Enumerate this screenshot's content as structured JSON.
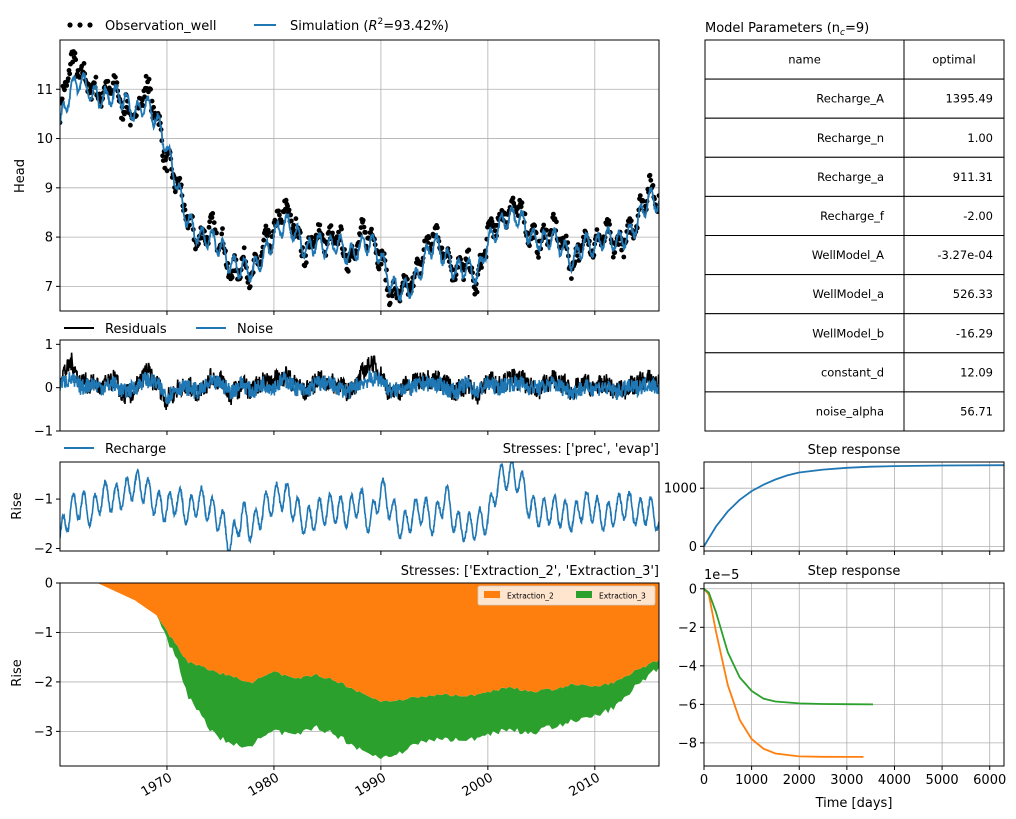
{
  "colors": {
    "blue": "#1f77b4",
    "orange": "#ff7f0e",
    "green": "#2ca02c",
    "black": "#000000",
    "grid": "#b0b0b0"
  },
  "chart_data": [
    {
      "id": "head",
      "type": "line",
      "ylabel": "Head",
      "xlim": [
        1960,
        2016
      ],
      "ylim": [
        6.5,
        12
      ],
      "yticks": [
        7,
        8,
        9,
        10,
        11
      ],
      "xticks": [
        1970,
        1980,
        1990,
        2000,
        2010
      ],
      "grid": true,
      "legend": {
        "placement": "top-left, above axes",
        "entries": [
          {
            "label": "Observation_well",
            "marker": "dots",
            "color": "#000000"
          },
          {
            "label": "Simulation (R²=93.42%)",
            "marker": "line",
            "color": "#1f77b4"
          }
        ]
      },
      "series": [
        {
          "name": "Observation_well",
          "style": "dots",
          "color": "#000000",
          "x": [
            1960,
            1961,
            1962,
            1963,
            1964,
            1965,
            1966,
            1967,
            1968,
            1969,
            1970,
            1971,
            1972,
            1973,
            1974,
            1975,
            1976,
            1977,
            1978,
            1979,
            1980,
            1981,
            1982,
            1983,
            1984,
            1985,
            1986,
            1987,
            1988,
            1989,
            1990,
            1991,
            1992,
            1993,
            1994,
            1995,
            1996,
            1997,
            1998,
            1999,
            2000,
            2001,
            2002,
            2003,
            2004,
            2005,
            2006,
            2007,
            2008,
            2009,
            2010,
            2011,
            2012,
            2013,
            2014,
            2015,
            2016
          ],
          "y": [
            10.5,
            11.6,
            11.3,
            11.0,
            10.9,
            11.1,
            10.6,
            10.4,
            11.1,
            10.5,
            9.5,
            9.1,
            8.3,
            7.9,
            8.2,
            8.0,
            7.2,
            7.5,
            7.2,
            7.8,
            8.1,
            8.6,
            8.2,
            7.6,
            8.1,
            7.9,
            8.0,
            7.5,
            8.0,
            8.1,
            7.6,
            6.8,
            6.9,
            7.1,
            7.7,
            8.1,
            7.7,
            7.3,
            7.5,
            7.0,
            8.1,
            8.3,
            8.6,
            8.6,
            8.0,
            7.9,
            8.2,
            7.9,
            7.4,
            8.0,
            7.8,
            8.1,
            7.8,
            8.0,
            8.4,
            9.0,
            8.8
          ]
        },
        {
          "name": "Simulation",
          "style": "line",
          "color": "#1f77b4",
          "x": [
            1960,
            1961,
            1962,
            1963,
            1964,
            1965,
            1966,
            1967,
            1968,
            1969,
            1970,
            1971,
            1972,
            1973,
            1974,
            1975,
            1976,
            1977,
            1978,
            1979,
            1980,
            1981,
            1982,
            1983,
            1984,
            1985,
            1986,
            1987,
            1988,
            1989,
            1990,
            1991,
            1992,
            1993,
            1994,
            1995,
            1996,
            1997,
            1998,
            1999,
            2000,
            2001,
            2002,
            2003,
            2004,
            2005,
            2006,
            2007,
            2008,
            2009,
            2010,
            2011,
            2012,
            2013,
            2014,
            2015,
            2016
          ],
          "y": [
            10.3,
            11.0,
            11.2,
            10.9,
            10.8,
            10.9,
            10.8,
            10.5,
            10.7,
            10.4,
            9.8,
            9.0,
            8.3,
            8.0,
            8.0,
            7.8,
            7.4,
            7.4,
            7.3,
            7.6,
            8.0,
            8.3,
            8.1,
            7.7,
            7.9,
            7.8,
            7.9,
            7.6,
            7.8,
            7.9,
            7.6,
            7.0,
            6.9,
            7.0,
            7.5,
            7.9,
            7.6,
            7.3,
            7.4,
            7.2,
            7.9,
            8.2,
            8.4,
            8.4,
            8.0,
            7.9,
            8.0,
            7.8,
            7.5,
            7.9,
            7.8,
            8.0,
            7.9,
            8.0,
            8.3,
            8.8,
            8.7
          ]
        }
      ]
    },
    {
      "id": "residuals",
      "type": "line",
      "xlim": [
        1960,
        2016
      ],
      "ylim": [
        -1,
        1.1
      ],
      "yticks": [
        -1,
        0,
        1
      ],
      "xticks": [
        1970,
        1980,
        1990,
        2000,
        2010
      ],
      "grid": false,
      "legend": {
        "placement": "top-left, above axes",
        "entries": [
          {
            "label": "Residuals",
            "color": "#000000"
          },
          {
            "label": "Noise",
            "color": "#1f77b4"
          }
        ]
      },
      "series": [
        {
          "name": "Residuals",
          "color": "#000000",
          "x": [
            1960,
            1961,
            1962,
            1963,
            1964,
            1965,
            1966,
            1967,
            1968,
            1969,
            1970,
            1971,
            1972,
            1973,
            1974,
            1975,
            1976,
            1977,
            1978,
            1979,
            1980,
            1981,
            1982,
            1983,
            1984,
            1985,
            1986,
            1987,
            1988,
            1989,
            1990,
            1991,
            1992,
            1993,
            1994,
            1995,
            1996,
            1997,
            1998,
            1999,
            2000,
            2001,
            2002,
            2003,
            2004,
            2005,
            2006,
            2007,
            2008,
            2009,
            2010,
            2011,
            2012,
            2013,
            2014,
            2015,
            2016
          ],
          "y": [
            0.2,
            0.6,
            0.1,
            0.1,
            0.0,
            0.2,
            -0.2,
            -0.1,
            0.4,
            0.1,
            -0.3,
            0.0,
            0.0,
            -0.1,
            0.2,
            0.2,
            -0.2,
            0.1,
            -0.1,
            0.2,
            0.1,
            0.3,
            0.1,
            -0.1,
            0.2,
            0.1,
            0.1,
            -0.1,
            0.2,
            0.6,
            0.3,
            -0.2,
            0.0,
            0.1,
            0.2,
            0.2,
            0.1,
            -0.1,
            0.1,
            -0.2,
            0.2,
            0.1,
            0.2,
            0.2,
            0.0,
            0.0,
            0.2,
            0.1,
            -0.1,
            0.1,
            0.0,
            0.1,
            -0.1,
            0.0,
            0.1,
            0.2,
            0.1
          ]
        },
        {
          "name": "Noise",
          "color": "#1f77b4",
          "x": [
            1960,
            1961,
            1962,
            1963,
            1964,
            1965,
            1966,
            1967,
            1968,
            1969,
            1970,
            1971,
            1972,
            1973,
            1974,
            1975,
            1976,
            1977,
            1978,
            1979,
            1980,
            1981,
            1982,
            1983,
            1984,
            1985,
            1986,
            1987,
            1988,
            1989,
            1990,
            1991,
            1992,
            1993,
            1994,
            1995,
            1996,
            1997,
            1998,
            1999,
            2000,
            2001,
            2002,
            2003,
            2004,
            2005,
            2006,
            2007,
            2008,
            2009,
            2010,
            2011,
            2012,
            2013,
            2014,
            2015,
            2016
          ],
          "y": [
            0.1,
            0.2,
            0.0,
            0.1,
            0.0,
            0.1,
            -0.1,
            0.0,
            0.2,
            0.1,
            -0.2,
            0.0,
            0.0,
            -0.1,
            0.1,
            0.1,
            -0.1,
            0.1,
            -0.1,
            0.1,
            0.0,
            0.2,
            0.0,
            -0.1,
            0.1,
            0.1,
            0.0,
            -0.1,
            0.1,
            0.2,
            0.2,
            -0.1,
            0.0,
            0.0,
            0.1,
            0.1,
            0.0,
            -0.1,
            0.1,
            -0.1,
            0.1,
            0.0,
            0.1,
            0.1,
            0.0,
            0.0,
            0.1,
            0.0,
            -0.1,
            0.0,
            0.0,
            0.0,
            -0.1,
            0.0,
            0.0,
            0.1,
            0.0
          ]
        }
      ]
    },
    {
      "id": "recharge",
      "type": "line",
      "title": "Stresses: ['prec', 'evap']",
      "ylabel": "Rise",
      "xlim": [
        1960,
        2016
      ],
      "ylim": [
        -2.05,
        -0.25
      ],
      "yticks": [
        -2,
        -1
      ],
      "xticks": [
        1970,
        1980,
        1990,
        2000,
        2010
      ],
      "grid": false,
      "legend": {
        "placement": "top-left, above axes",
        "entries": [
          {
            "label": "Recharge",
            "color": "#1f77b4"
          }
        ]
      },
      "series": [
        {
          "name": "Recharge",
          "color": "#1f77b4",
          "x": [
            1960,
            1961,
            1962,
            1963,
            1964,
            1965,
            1966,
            1967,
            1968,
            1969,
            1970,
            1971,
            1972,
            1973,
            1974,
            1975,
            1976,
            1977,
            1978,
            1979,
            1980,
            1981,
            1982,
            1983,
            1984,
            1985,
            1986,
            1987,
            1988,
            1989,
            1990,
            1991,
            1992,
            1993,
            1994,
            1995,
            1996,
            1997,
            1998,
            1999,
            2000,
            2001,
            2002,
            2003,
            2004,
            2005,
            2006,
            2007,
            2008,
            2009,
            2010,
            2011,
            2012,
            2013,
            2014,
            2015,
            2016
          ],
          "y": [
            -1.8,
            -1.2,
            -1.1,
            -1.3,
            -0.9,
            -1.0,
            -0.9,
            -0.7,
            -0.8,
            -1.1,
            -1.2,
            -1.0,
            -1.3,
            -1.0,
            -1.2,
            -1.4,
            -1.9,
            -1.3,
            -1.6,
            -1.2,
            -1.0,
            -0.9,
            -1.2,
            -1.5,
            -1.3,
            -1.2,
            -1.2,
            -1.3,
            -1.0,
            -1.5,
            -0.8,
            -1.2,
            -1.6,
            -1.3,
            -1.2,
            -1.5,
            -0.9,
            -1.5,
            -1.6,
            -1.5,
            -1.4,
            -0.6,
            -0.5,
            -0.6,
            -1.2,
            -1.3,
            -1.2,
            -1.3,
            -1.4,
            -1.1,
            -1.2,
            -1.4,
            -1.2,
            -1.1,
            -1.3,
            -1.2,
            -1.4
          ]
        }
      ]
    },
    {
      "id": "extraction",
      "type": "area",
      "title": "Stresses: ['Extraction_2', 'Extraction_3']",
      "ylabel": "Rise",
      "xlim": [
        1960,
        2016
      ],
      "ylim": [
        -3.7,
        0
      ],
      "yticks": [
        -3,
        -2,
        -1,
        0
      ],
      "xticks": [
        1970,
        1980,
        1990,
        2000,
        2010
      ],
      "xticklabels": [
        "1970",
        "1980",
        "1990",
        "2000",
        "2010"
      ],
      "grid": true,
      "legend": {
        "placement": "top-right",
        "entries": [
          {
            "label": "Extraction_2",
            "color": "#ff7f0e"
          },
          {
            "label": "Extraction_3",
            "color": "#2ca02c"
          }
        ]
      },
      "x": [
        1963.5,
        1965,
        1967,
        1969,
        1971,
        1972,
        1974,
        1976,
        1978,
        1980,
        1982,
        1984,
        1986,
        1988,
        1990,
        1992,
        1994,
        1996,
        1998,
        2000,
        2002,
        2004,
        2006,
        2008,
        2010,
        2012,
        2014,
        2016
      ],
      "series": [
        {
          "name": "Extraction_2",
          "color": "#ff7f0e",
          "values": [
            0,
            -0.15,
            -0.35,
            -0.65,
            -1.3,
            -1.6,
            -1.75,
            -1.9,
            -2.0,
            -1.8,
            -1.95,
            -1.85,
            -2.0,
            -2.2,
            -2.4,
            -2.35,
            -2.3,
            -2.25,
            -2.3,
            -2.2,
            -2.1,
            -2.2,
            -2.15,
            -2.05,
            -2.1,
            -2.0,
            -1.75,
            -1.55
          ]
        },
        {
          "name": "Extraction_3",
          "color": "#2ca02c",
          "values": [
            0,
            0,
            0,
            0,
            -0.3,
            -0.7,
            -1.2,
            -1.4,
            -1.25,
            -1.2,
            -1.15,
            -1.05,
            -1.1,
            -1.15,
            -1.15,
            -1.05,
            -0.9,
            -0.9,
            -0.9,
            -0.85,
            -0.85,
            -0.85,
            -0.75,
            -0.75,
            -0.6,
            -0.5,
            -0.3,
            -0.15
          ]
        }
      ]
    },
    {
      "id": "step-recharge",
      "type": "line",
      "title": "Step response",
      "xlim": [
        0,
        6300
      ],
      "ylim": [
        -80,
        1450
      ],
      "yticks": [
        0,
        1000
      ],
      "xticks": [
        0,
        1000,
        2000,
        3000,
        4000,
        5000,
        6000
      ],
      "grid": true,
      "series": [
        {
          "name": "",
          "color": "#1f77b4",
          "x": [
            0,
            250,
            500,
            750,
            1000,
            1250,
            1500,
            1750,
            2000,
            2500,
            3000,
            3500,
            4000,
            5000,
            6300
          ],
          "y": [
            0,
            340,
            600,
            800,
            950,
            1060,
            1150,
            1220,
            1270,
            1320,
            1350,
            1370,
            1380,
            1390,
            1395
          ]
        }
      ]
    },
    {
      "id": "step-extraction",
      "type": "line",
      "title": "Step response",
      "xlabel": "Time [days]",
      "scale_label": "1e−5",
      "xlim": [
        0,
        6300
      ],
      "ylim": [
        -9.2,
        0.3
      ],
      "yticks": [
        0,
        -2,
        -4,
        -6,
        -8
      ],
      "xticks": [
        0,
        1000,
        2000,
        3000,
        4000,
        5000,
        6000
      ],
      "grid": true,
      "series": [
        {
          "name": "",
          "color": "#ff7f0e",
          "x": [
            0,
            100,
            250,
            500,
            750,
            1000,
            1250,
            1500,
            2000,
            2500,
            3000,
            3350
          ],
          "y": [
            0,
            -0.3,
            -2.2,
            -5.0,
            -6.8,
            -7.8,
            -8.3,
            -8.55,
            -8.7,
            -8.72,
            -8.73,
            -8.73
          ]
        },
        {
          "name": "",
          "color": "#2ca02c",
          "x": [
            0,
            100,
            250,
            500,
            750,
            1000,
            1250,
            1500,
            2000,
            2500,
            3000,
            3550
          ],
          "y": [
            0,
            -0.2,
            -1.2,
            -3.3,
            -4.6,
            -5.3,
            -5.7,
            -5.85,
            -5.95,
            -5.98,
            -5.99,
            -6.0
          ]
        }
      ]
    }
  ],
  "params_table": {
    "title": "Model Parameters (n",
    "title_sub": "c",
    "title_end": "=9)",
    "headers": [
      "name",
      "optimal"
    ],
    "rows": [
      [
        "Recharge_A",
        "1395.49"
      ],
      [
        "Recharge_n",
        "1.00"
      ],
      [
        "Recharge_a",
        "911.31"
      ],
      [
        "Recharge_f",
        "-2.00"
      ],
      [
        "WellModel_A",
        "-3.27e-04"
      ],
      [
        "WellModel_a",
        "526.33"
      ],
      [
        "WellModel_b",
        "-16.29"
      ],
      [
        "constant_d",
        "12.09"
      ],
      [
        "noise_alpha",
        "56.71"
      ]
    ]
  }
}
